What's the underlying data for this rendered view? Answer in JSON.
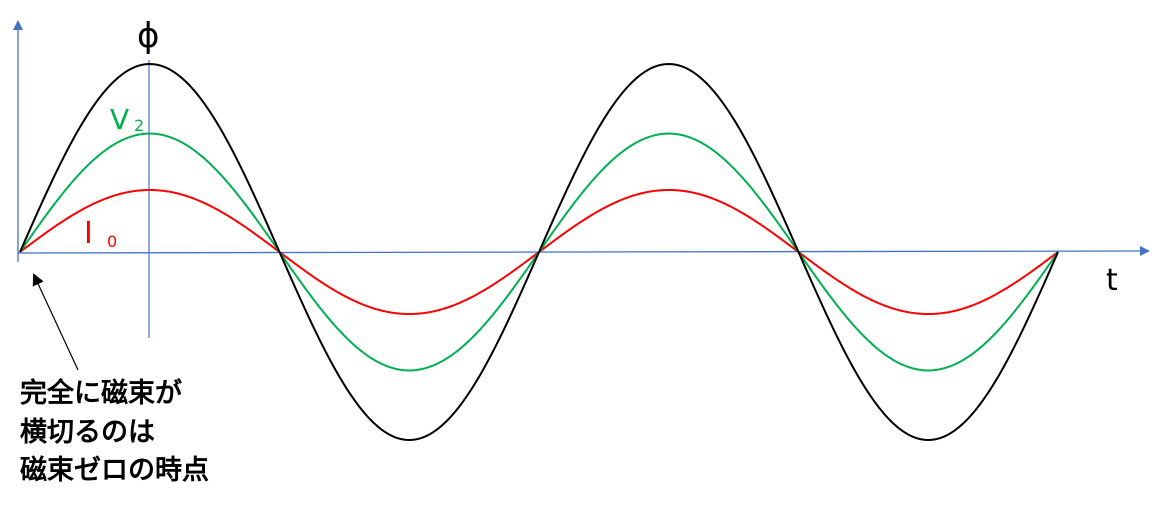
{
  "colors": {
    "axis": "#4472c4",
    "phi": "#000000",
    "v2": "#00b050",
    "i0": "#ff0000",
    "arrow": "#000000",
    "note": "#000000"
  },
  "labels": {
    "phi": "ϕ",
    "v2_main": "V",
    "v2_sub": "2",
    "i0_main": "I",
    "i0_sub": "0",
    "t_axis": "t"
  },
  "annotation": {
    "lines": [
      "完全に磁束が",
      "横切るのは",
      "磁束ゼロの時点"
    ]
  },
  "chart_data": {
    "type": "line",
    "title": "",
    "xlabel": "t",
    "ylabel": "",
    "cycles": 2,
    "grid": false,
    "legend": "none",
    "series": [
      {
        "name": "ϕ",
        "amplitude": 1.0,
        "shape": "sine"
      },
      {
        "name": "V₂",
        "amplitude": 0.63,
        "shape": "sine"
      },
      {
        "name": "I₀",
        "amplitude": 0.33,
        "shape": "sine"
      }
    ]
  }
}
